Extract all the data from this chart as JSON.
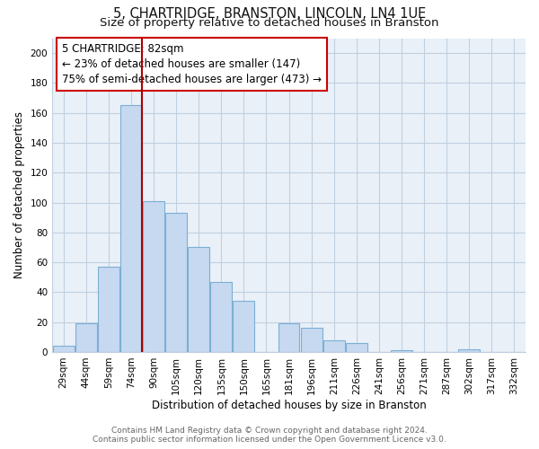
{
  "title": "5, CHARTRIDGE, BRANSTON, LINCOLN, LN4 1UE",
  "subtitle": "Size of property relative to detached houses in Branston",
  "xlabel": "Distribution of detached houses by size in Branston",
  "ylabel": "Number of detached properties",
  "bar_labels": [
    "29sqm",
    "44sqm",
    "59sqm",
    "74sqm",
    "90sqm",
    "105sqm",
    "120sqm",
    "135sqm",
    "150sqm",
    "165sqm",
    "181sqm",
    "196sqm",
    "211sqm",
    "226sqm",
    "241sqm",
    "256sqm",
    "271sqm",
    "287sqm",
    "302sqm",
    "317sqm",
    "332sqm"
  ],
  "bar_values": [
    4,
    19,
    57,
    165,
    101,
    93,
    70,
    47,
    34,
    0,
    19,
    16,
    8,
    6,
    0,
    1,
    0,
    0,
    2,
    0,
    0
  ],
  "bar_color": "#c6d9f0",
  "bar_edge_color": "#7bafd4",
  "vline_index": 3,
  "vline_color": "#aa0000",
  "annotation_line1": "5 CHARTRIDGE: 82sqm",
  "annotation_line2": "← 23% of detached houses are smaller (147)",
  "annotation_line3": "75% of semi-detached houses are larger (473) →",
  "ylim": [
    0,
    210
  ],
  "yticks": [
    0,
    20,
    40,
    60,
    80,
    100,
    120,
    140,
    160,
    180,
    200
  ],
  "footer_line1": "Contains HM Land Registry data © Crown copyright and database right 2024.",
  "footer_line2": "Contains public sector information licensed under the Open Government Licence v3.0.",
  "bg_color": "#ffffff",
  "plot_bg_color": "#eaf0f8",
  "grid_color": "#c0d0e0",
  "title_fontsize": 10.5,
  "subtitle_fontsize": 9.5,
  "axis_label_fontsize": 8.5,
  "tick_fontsize": 7.5,
  "footer_fontsize": 6.5,
  "annotation_fontsize": 8.5
}
